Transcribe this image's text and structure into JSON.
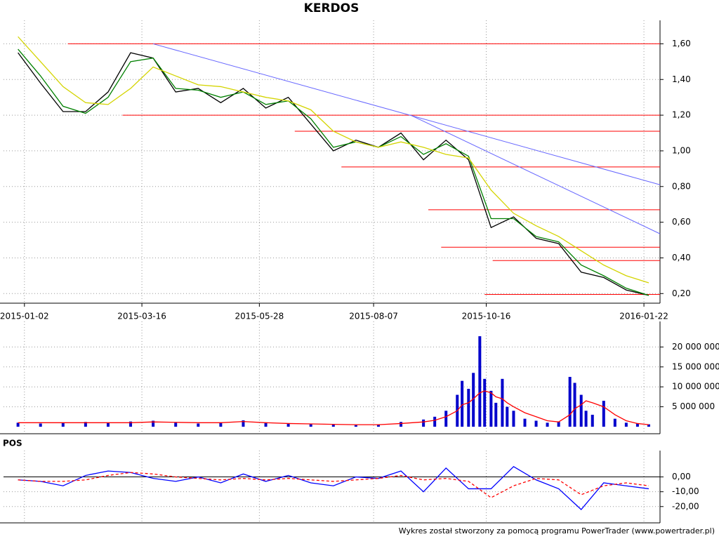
{
  "chart_data": [
    {
      "type": "line",
      "title": "KERDOS",
      "x": [
        "2014-12-29",
        "2015-01-12",
        "2015-01-26",
        "2015-02-09",
        "2015-02-23",
        "2015-03-09",
        "2015-03-23",
        "2015-04-06",
        "2015-04-20",
        "2015-05-04",
        "2015-05-18",
        "2015-06-01",
        "2015-06-15",
        "2015-06-29",
        "2015-07-13",
        "2015-07-27",
        "2015-08-10",
        "2015-08-24",
        "2015-09-07",
        "2015-09-21",
        "2015-10-05",
        "2015-10-19",
        "2015-11-02",
        "2015-11-16",
        "2015-11-30",
        "2015-12-14",
        "2015-12-28",
        "2016-01-11",
        "2016-01-25"
      ],
      "series": [
        {
          "color": "#000000",
          "values": [
            1.55,
            1.38,
            1.22,
            1.22,
            1.33,
            1.55,
            1.52,
            1.33,
            1.35,
            1.27,
            1.35,
            1.24,
            1.3,
            1.15,
            1.0,
            1.06,
            1.02,
            1.1,
            0.95,
            1.06,
            0.95,
            0.57,
            0.63,
            0.51,
            0.48,
            0.32,
            0.29,
            0.22,
            0.19
          ]
        },
        {
          "color": "#008000",
          "values": [
            1.57,
            1.42,
            1.25,
            1.21,
            1.3,
            1.5,
            1.52,
            1.35,
            1.34,
            1.3,
            1.33,
            1.26,
            1.28,
            1.18,
            1.02,
            1.05,
            1.02,
            1.08,
            0.98,
            1.04,
            0.97,
            0.62,
            0.62,
            0.52,
            0.49,
            0.36,
            0.3,
            0.23,
            0.19
          ]
        },
        {
          "color": "#d4d400",
          "values": [
            1.64,
            1.5,
            1.36,
            1.27,
            1.26,
            1.35,
            1.47,
            1.42,
            1.37,
            1.36,
            1.33,
            1.3,
            1.28,
            1.23,
            1.11,
            1.05,
            1.02,
            1.05,
            1.02,
            0.98,
            0.96,
            0.78,
            0.65,
            0.58,
            0.52,
            0.44,
            0.36,
            0.3,
            0.26
          ]
        }
      ],
      "hlines": {
        "color": "#ff0000",
        "lines": [
          {
            "value": 1.6,
            "from": "2015-01-29"
          },
          {
            "value": 1.2,
            "from": "2015-03-04"
          },
          {
            "value": 1.11,
            "from": "2015-06-19"
          },
          {
            "value": 0.91,
            "from": "2015-07-18"
          },
          {
            "value": 0.67,
            "from": "2015-09-10"
          },
          {
            "value": 0.46,
            "from": "2015-09-18"
          },
          {
            "value": 0.385,
            "from": "2015-10-20"
          },
          {
            "value": 0.195,
            "from": "2015-10-15"
          }
        ]
      },
      "trendlines": {
        "color": "#6666ff",
        "lines": [
          {
            "x": [
              "2015-03-23",
              "2016-02-01"
            ],
            "y": [
              1.6,
              0.81
            ]
          },
          {
            "x": [
              "2015-08-30",
              "2016-02-01"
            ],
            "y": [
              1.2,
              0.535
            ]
          }
        ]
      },
      "xlim": [
        "2014-12-20",
        "2016-02-01"
      ],
      "xticks": [
        "2015-01-02",
        "2015-03-16",
        "2015-05-28",
        "2015-08-07",
        "2015-10-16",
        "2016-01-22"
      ],
      "ylim": [
        0.15,
        1.7
      ],
      "yticks": [
        {
          "value": 0.2,
          "label": "0,20"
        },
        {
          "value": 0.4,
          "label": "0,40"
        },
        {
          "value": 0.6,
          "label": "0,60"
        },
        {
          "value": 0.8,
          "label": "0,80"
        },
        {
          "value": 1.0,
          "label": "1,00"
        },
        {
          "value": 1.2,
          "label": "1,20"
        },
        {
          "value": 1.4,
          "label": "1,40"
        },
        {
          "value": 1.6,
          "label": "1,60"
        }
      ],
      "grid": true
    },
    {
      "type": "bar",
      "x": [
        "2014-12-29",
        "2015-01-12",
        "2015-01-26",
        "2015-02-09",
        "2015-02-23",
        "2015-03-09",
        "2015-03-23",
        "2015-04-06",
        "2015-04-20",
        "2015-05-04",
        "2015-05-18",
        "2015-06-01",
        "2015-06-15",
        "2015-06-29",
        "2015-07-13",
        "2015-07-27",
        "2015-08-10",
        "2015-08-24",
        "2015-09-07",
        "2015-09-14",
        "2015-09-21",
        "2015-09-28",
        "2015-10-01",
        "2015-10-05",
        "2015-10-08",
        "2015-10-12",
        "2015-10-15",
        "2015-10-19",
        "2015-10-22",
        "2015-10-26",
        "2015-10-29",
        "2015-11-02",
        "2015-11-09",
        "2015-11-16",
        "2015-11-23",
        "2015-11-30",
        "2015-12-07",
        "2015-12-10",
        "2015-12-14",
        "2015-12-17",
        "2015-12-21",
        "2015-12-28",
        "2016-01-04",
        "2016-01-11",
        "2016-01-18",
        "2016-01-25"
      ],
      "series": [
        {
          "type": "bar",
          "color": "#0000cc",
          "values": [
            1000000,
            800000,
            1000000,
            1200000,
            900000,
            1300000,
            1500000,
            1000000,
            800000,
            1100000,
            1600000,
            900000,
            700000,
            600000,
            500000,
            400000,
            600000,
            1200000,
            1800000,
            2500000,
            4000000,
            8000000,
            11500000,
            9500000,
            13500000,
            22700000,
            12000000,
            9000000,
            6000000,
            12000000,
            5000000,
            4000000,
            2000000,
            1500000,
            1000000,
            1200000,
            12500000,
            11000000,
            8000000,
            4000000,
            3000000,
            6500000,
            2000000,
            1000000,
            800000,
            600000
          ]
        },
        {
          "type": "line",
          "color": "#ff0000",
          "values": [
            1000000,
            1000000,
            1000000,
            1000000,
            1000000,
            1000000,
            1200000,
            1100000,
            1000000,
            1000000,
            1300000,
            1000000,
            800000,
            700000,
            600000,
            500000,
            500000,
            800000,
            1200000,
            1600000,
            2500000,
            4000000,
            5500000,
            6000000,
            7000000,
            8500000,
            9000000,
            8500000,
            7500000,
            7000000,
            6000000,
            5000000,
            3500000,
            2500000,
            1500000,
            1200000,
            3000000,
            4500000,
            5500000,
            6500000,
            6000000,
            5000000,
            3000000,
            1500000,
            800000,
            500000
          ]
        }
      ],
      "xlim": [
        "2014-12-20",
        "2016-02-01"
      ],
      "ylim": [
        0,
        25000000
      ],
      "yticks": [
        {
          "value": 5000000,
          "label": "5 000 000"
        },
        {
          "value": 10000000,
          "label": "10 000 000"
        },
        {
          "value": 15000000,
          "label": "15 000 000"
        },
        {
          "value": 20000000,
          "label": "20 000 000"
        }
      ],
      "grid": true
    },
    {
      "type": "line",
      "title": "POS",
      "x": [
        "2014-12-29",
        "2015-01-12",
        "2015-01-26",
        "2015-02-09",
        "2015-02-23",
        "2015-03-09",
        "2015-03-23",
        "2015-04-06",
        "2015-04-20",
        "2015-05-04",
        "2015-05-18",
        "2015-06-01",
        "2015-06-15",
        "2015-06-29",
        "2015-07-13",
        "2015-07-27",
        "2015-08-10",
        "2015-08-24",
        "2015-09-07",
        "2015-09-21",
        "2015-10-05",
        "2015-10-19",
        "2015-11-02",
        "2015-11-16",
        "2015-11-30",
        "2015-12-14",
        "2015-12-28",
        "2016-01-11",
        "2016-01-25"
      ],
      "series": [
        {
          "color": "#0000ff",
          "values": [
            -2,
            -3,
            -6,
            1,
            4,
            3,
            -1,
            -3,
            0,
            -4,
            2,
            -3,
            1,
            -4,
            -6,
            0,
            -1,
            4,
            -10,
            6,
            -8,
            -8,
            7,
            -2,
            -8,
            -22,
            -4,
            -6,
            -8
          ]
        },
        {
          "color": "#ff0000",
          "dash": true,
          "values": [
            -2,
            -3,
            -3,
            -2,
            1,
            3,
            2,
            0,
            -1,
            -2,
            -1,
            -2,
            -1,
            -2,
            -3,
            -2,
            -1,
            1,
            -2,
            -1,
            -3,
            -14,
            -6,
            -1,
            -2,
            -12,
            -6,
            -4,
            -6
          ]
        }
      ],
      "xlim": [
        "2014-12-20",
        "2016-02-01"
      ],
      "ylim": [
        -31,
        14
      ],
      "yticks": [
        {
          "value": -20,
          "label": "-20,00"
        },
        {
          "value": -10,
          "label": "-10,00"
        },
        {
          "value": 0,
          "label": "0,00"
        }
      ],
      "zero_line": true,
      "grid": true
    }
  ],
  "footer": "Wykres został stworzony za pomocą programu PowerTrader (www.powertrader.pl)"
}
